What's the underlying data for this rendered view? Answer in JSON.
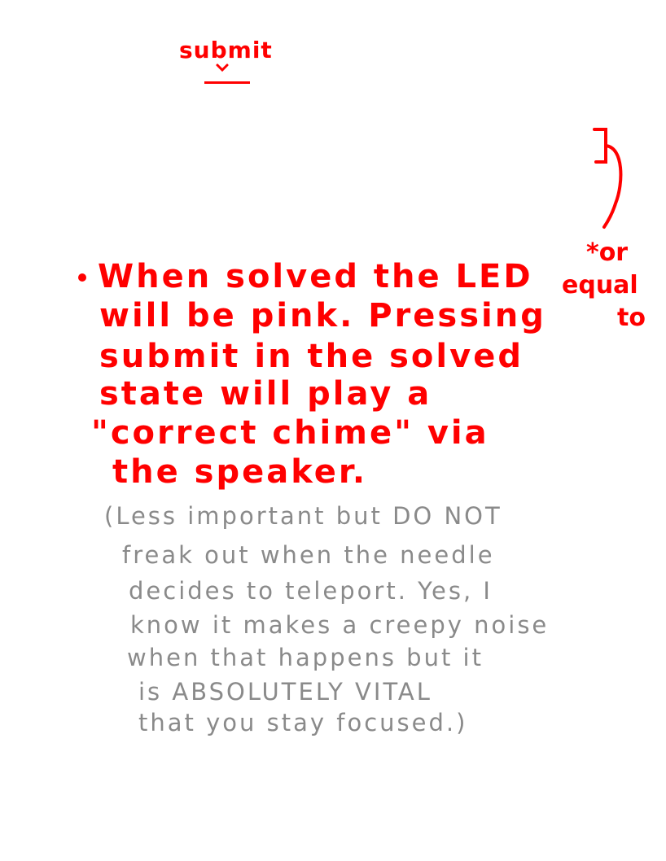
{
  "notes": {
    "submit_label": "submit",
    "or_equal_to": [
      "*or",
      "equal",
      "to"
    ],
    "main_note_lines": [
      "When solved the LED",
      "will be pink. Pressing",
      "submit in the solved",
      "state will play a",
      "\"correct chime\" via",
      "the speaker."
    ],
    "aside_lines": [
      "(Less important but DO NOT",
      "freak out when the needle",
      "decides to teleport. Yes, I",
      "know it makes a creepy noise",
      "when that happens but it",
      "is ABSOLUTELY VITAL",
      "that you stay focused.)"
    ]
  },
  "colors": {
    "main_ink": "#ff0000",
    "aside_ink": "#8a8a8a",
    "background": "#ffffff"
  }
}
